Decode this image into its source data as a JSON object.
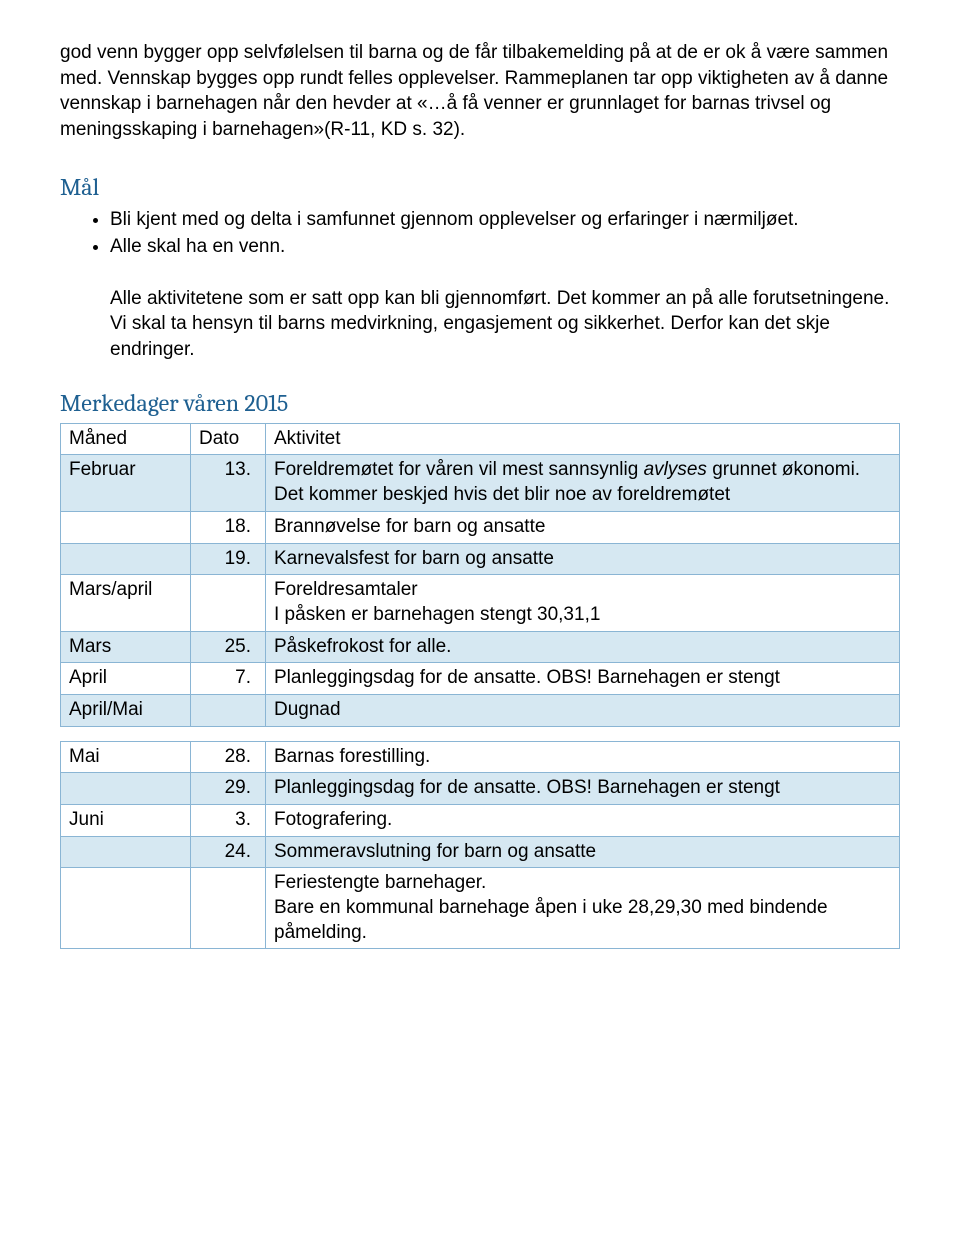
{
  "intro": "god venn bygger opp selvfølelsen til barna og de får tilbakemelding på at de er ok å være sammen med. Vennskap bygges opp rundt felles opplevelser. Rammeplanen tar opp viktigheten av å danne vennskap i barnehagen når den hevder at «…å få venner er grunnlaget for barnas trivsel og meningsskaping i barnehagen»(R-11, KD s. 32).",
  "mal_heading": "Mål",
  "goals": [
    "Bli kjent med og delta i samfunnet gjennom opplevelser og erfaringer i nærmiljøet.",
    "Alle skal ha en venn."
  ],
  "goal_note": "Alle aktivitetene som er satt opp kan bli gjennomført. Det kommer an på alle forutsetningene. Vi skal ta hensyn til barns medvirkning, engasjement og sikkerhet. Derfor kan det skje endringer.",
  "merkedager_heading": "Merkedager våren 2015",
  "table1_headers": [
    "Måned",
    "Dato",
    "Aktivitet"
  ],
  "table1_rows": [
    {
      "alt": true,
      "m": "Februar",
      "d": "13.",
      "a": "Foreldremøtet for våren vil mest sannsynlig avlyses grunnet økonomi. Det kommer beskjed hvis det blir noe av foreldremøtet",
      "italic_word": "avlyses"
    },
    {
      "alt": false,
      "m": "",
      "d": "18.",
      "a": "Brannøvelse for barn og ansatte"
    },
    {
      "alt": true,
      "m": "",
      "d": "19.",
      "a": "Karnevalsfest for barn og ansatte"
    },
    {
      "alt": false,
      "m": "Mars/april",
      "d": "",
      "a": "Foreldresamtaler\nI påsken er barnehagen stengt 30,31,1"
    },
    {
      "alt": true,
      "m": "Mars",
      "d": "25.",
      "a": "Påskefrokost for alle."
    },
    {
      "alt": false,
      "m": "April",
      "d": "7.",
      "a": "Planleggingsdag for de ansatte. OBS! Barnehagen er stengt"
    },
    {
      "alt": true,
      "m": "April/Mai",
      "d": "",
      "a": "Dugnad"
    }
  ],
  "table2_rows": [
    {
      "alt": false,
      "m": "Mai",
      "d": "28.",
      "a": "Barnas forestilling."
    },
    {
      "alt": true,
      "m": "",
      "d": "29.",
      "a": "Planleggingsdag for de ansatte. OBS! Barnehagen er stengt"
    },
    {
      "alt": false,
      "m": "Juni",
      "d": "3.",
      "a": "Fotografering."
    },
    {
      "alt": true,
      "m": "",
      "d": "24.",
      "a": "Sommeravslutning for barn og ansatte"
    },
    {
      "alt": false,
      "m": "",
      "d": "",
      "a": "Feriestengte barnehager.\nBare en kommunal barnehage åpen i uke 28,29,30 med bindende påmelding."
    }
  ],
  "colors": {
    "border": "#8ab5d4",
    "alt_row": "#d6e8f2",
    "heading": "#1f6091"
  }
}
